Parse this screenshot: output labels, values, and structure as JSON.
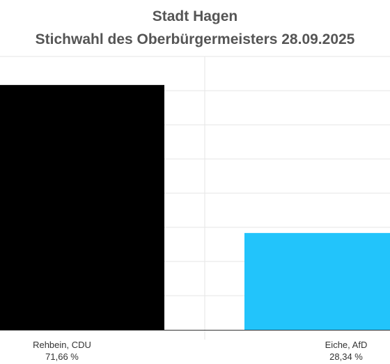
{
  "chart_data": {
    "type": "bar",
    "title": "Stadt Hagen",
    "subtitle": "Stichwahl des Oberbürgermeisters 28.09.2025",
    "xlabel": "",
    "ylabel": "",
    "categories": [
      {
        "label": "Rehbein, CDU",
        "value_label": "71,66 %"
      },
      {
        "label": "Eiche, AfD",
        "value_label": "28,34 %"
      }
    ],
    "values": [
      71.66,
      28.34
    ],
    "ylim": [
      0,
      80
    ],
    "grid": true,
    "colors": [
      "#000000",
      "#22c4fb"
    ]
  }
}
